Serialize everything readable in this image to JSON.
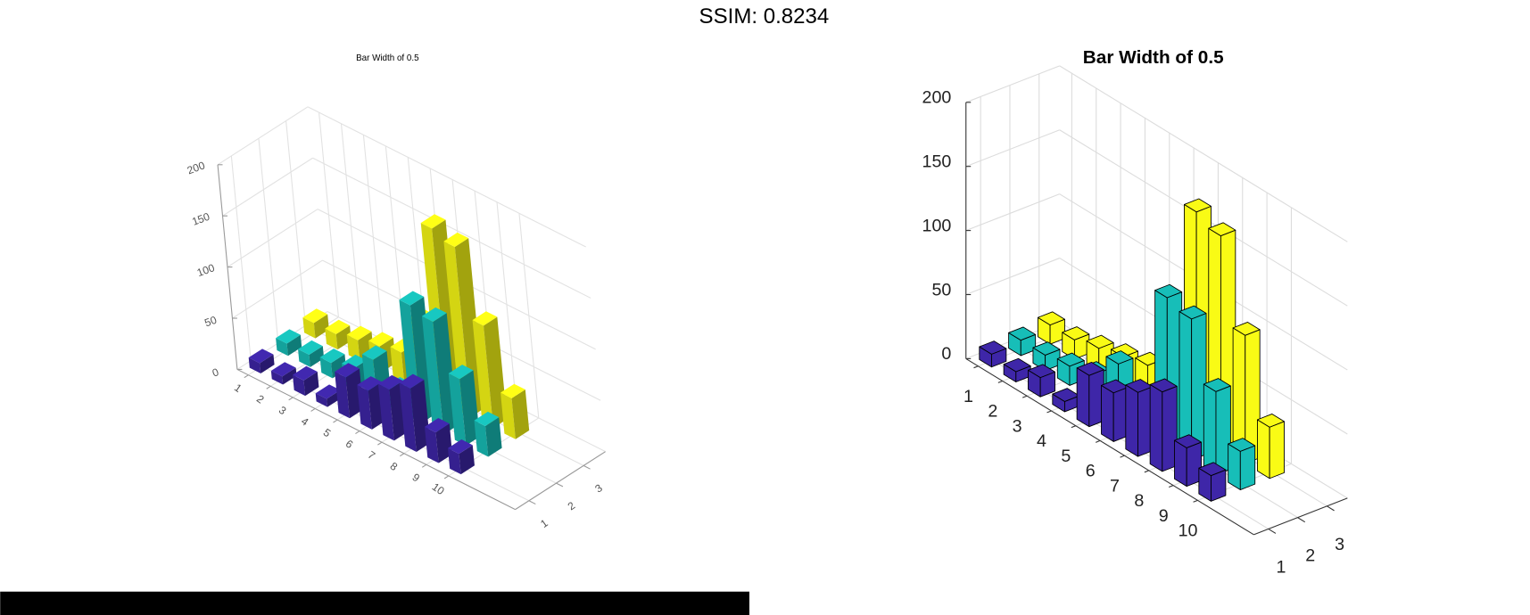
{
  "ssim": "SSIM: 0.8234",
  "chart_data": [
    {
      "type": "bar3d",
      "title": "Bar Width of 0.5",
      "x": [
        1,
        2,
        3,
        4,
        5,
        6,
        7,
        8,
        9,
        10
      ],
      "xticks": [
        1,
        2,
        3,
        4,
        5,
        6,
        7,
        8,
        9,
        10
      ],
      "xlim": [
        0.5,
        13
      ],
      "yticks": [
        1,
        2,
        3
      ],
      "ylim": [
        0.5,
        3.8
      ],
      "zlim": [
        0,
        200
      ],
      "zticks": [
        0,
        50,
        100,
        150,
        200
      ],
      "grid": true,
      "series": [
        {
          "color": "#3e26a8",
          "values": [
            10,
            8,
            15,
            8,
            40,
            38,
            50,
            62,
            30,
            20
          ]
        },
        {
          "color": "#17beb8",
          "values": [
            12,
            12,
            15,
            20,
            40,
            20,
            115,
            110,
            65,
            30
          ]
        },
        {
          "color": "#f9fb15",
          "values": [
            15,
            15,
            20,
            25,
            30,
            70,
            173,
            166,
            100,
            40
          ]
        }
      ]
    },
    {
      "type": "bar3d",
      "title": "Bar Width of 0.5",
      "x": [
        1,
        2,
        3,
        4,
        5,
        6,
        7,
        8,
        9,
        10
      ],
      "xticks": [
        1,
        2,
        3,
        4,
        5,
        6,
        7,
        8,
        9,
        10
      ],
      "xlim": [
        0.5,
        12.3
      ],
      "yticks": [
        1,
        2,
        3
      ],
      "ylim": [
        0.5,
        3.7
      ],
      "zlim": [
        0,
        200
      ],
      "zticks": [
        0,
        50,
        100,
        150,
        200
      ],
      "grid": true,
      "edgecolor": "#000000",
      "series": [
        {
          "color": "#3e26a8",
          "values": [
            10,
            8,
            15,
            8,
            40,
            38,
            50,
            62,
            30,
            20
          ]
        },
        {
          "color": "#17beb8",
          "values": [
            12,
            12,
            15,
            20,
            40,
            20,
            115,
            110,
            65,
            30
          ]
        },
        {
          "color": "#f9fb15",
          "values": [
            15,
            15,
            20,
            25,
            30,
            70,
            173,
            166,
            100,
            40
          ]
        }
      ]
    }
  ]
}
